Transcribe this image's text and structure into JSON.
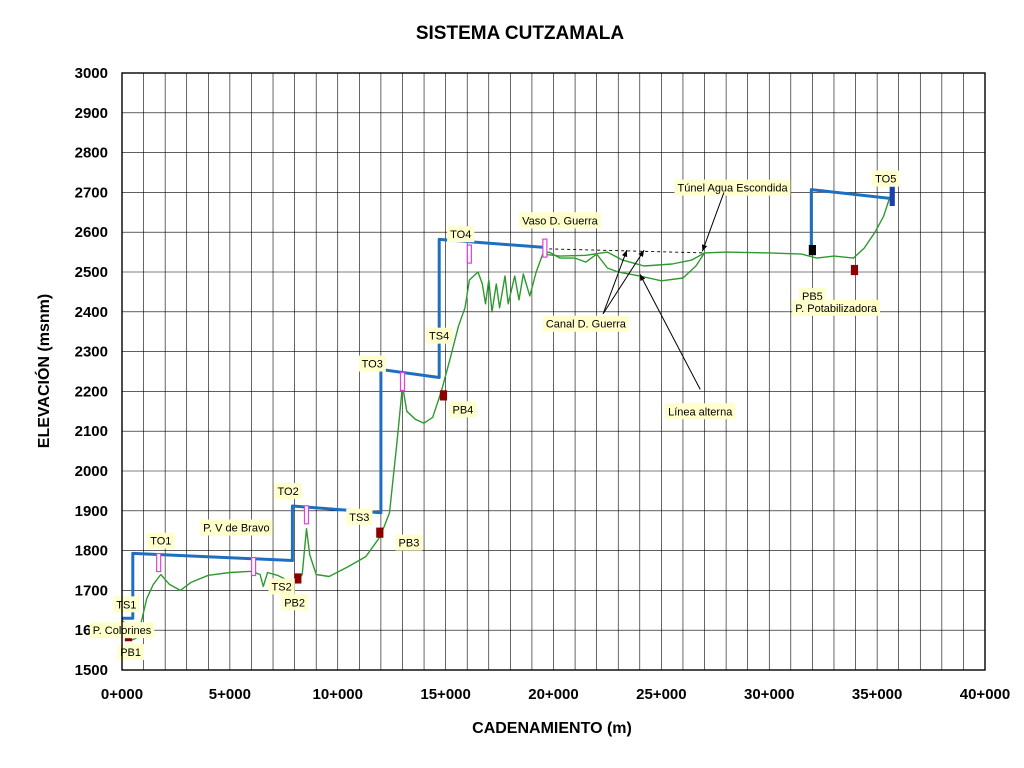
{
  "chart_data": {
    "type": "line",
    "title": "SISTEMA CUTZAMALA",
    "xlabel": "CADENAMIENTO (m)",
    "ylabel": "ELEVACIÓN (msnm)",
    "xlim": [
      0,
      40000
    ],
    "ylim": [
      1500,
      3000
    ],
    "grid": true,
    "x_ticks": [
      0,
      5000,
      10000,
      15000,
      20000,
      25000,
      30000,
      35000,
      40000
    ],
    "x_tick_labels": [
      "0+000",
      "5+000",
      "10+000",
      "15+000",
      "20+000",
      "25+000",
      "30+000",
      "35+000",
      "40+000"
    ],
    "y_ticks": [
      1500,
      1600,
      1700,
      1800,
      1900,
      2000,
      2100,
      2200,
      2300,
      2400,
      2500,
      2600,
      2700,
      2800,
      2900,
      3000
    ],
    "y_tick_labels": [
      "1500",
      "1600",
      "1700",
      "1800",
      "1900",
      "2000",
      "2100",
      "2200",
      "2300",
      "2400",
      "2500",
      "2600",
      "2700",
      "2800",
      "2900",
      "3000"
    ],
    "series": [
      {
        "color": "#1f6fc0",
        "points": [
          [
            0,
            1630
          ],
          [
            500,
            1630
          ],
          [
            500,
            1793
          ],
          [
            7900,
            1775
          ],
          [
            7900,
            1912
          ],
          [
            12000,
            1895
          ],
          [
            12000,
            2255
          ],
          [
            14700,
            2235
          ],
          [
            14700,
            2582
          ],
          [
            19500,
            2562
          ]
        ]
      },
      {
        "color": "#1f6fc0",
        "points": [
          [
            31950,
            2555
          ],
          [
            31950,
            2707
          ],
          [
            35600,
            2685
          ]
        ]
      },
      {
        "color": "#2e9a2e",
        "points": [
          [
            0,
            1625
          ],
          [
            250,
            1610
          ],
          [
            450,
            1575
          ],
          [
            650,
            1580
          ],
          [
            850,
            1610
          ],
          [
            1150,
            1680
          ],
          [
            1450,
            1715
          ],
          [
            1800,
            1740
          ],
          [
            2200,
            1715
          ],
          [
            2700,
            1700
          ],
          [
            3200,
            1720
          ],
          [
            4000,
            1738
          ],
          [
            5000,
            1745
          ],
          [
            6000,
            1748
          ],
          [
            6400,
            1740
          ],
          [
            6550,
            1710
          ],
          [
            6750,
            1745
          ],
          [
            7200,
            1738
          ],
          [
            7700,
            1725
          ],
          [
            8100,
            1720
          ],
          [
            8350,
            1740
          ],
          [
            8550,
            1855
          ],
          [
            8700,
            1790
          ],
          [
            9000,
            1740
          ],
          [
            9600,
            1735
          ],
          [
            10500,
            1760
          ],
          [
            11300,
            1785
          ],
          [
            11900,
            1830
          ],
          [
            12150,
            1860
          ],
          [
            12400,
            1895
          ],
          [
            12750,
            2075
          ],
          [
            13000,
            2215
          ],
          [
            13200,
            2150
          ],
          [
            13600,
            2130
          ],
          [
            14000,
            2120
          ],
          [
            14400,
            2135
          ],
          [
            14800,
            2200
          ],
          [
            15200,
            2280
          ],
          [
            15600,
            2365
          ],
          [
            15900,
            2410
          ],
          [
            16100,
            2480
          ],
          [
            16500,
            2500
          ],
          [
            16700,
            2470
          ],
          [
            16850,
            2420
          ],
          [
            17000,
            2480
          ],
          [
            17150,
            2400
          ],
          [
            17350,
            2470
          ],
          [
            17500,
            2410
          ],
          [
            17750,
            2490
          ],
          [
            17900,
            2420
          ],
          [
            18200,
            2490
          ],
          [
            18400,
            2430
          ],
          [
            18600,
            2495
          ],
          [
            18900,
            2440
          ],
          [
            19200,
            2500
          ],
          [
            19500,
            2545
          ],
          [
            19800,
            2550
          ],
          [
            20300,
            2535
          ],
          [
            21000,
            2535
          ],
          [
            21500,
            2525
          ],
          [
            22000,
            2545
          ],
          [
            22500,
            2510
          ],
          [
            23000,
            2500
          ],
          [
            24000,
            2490
          ],
          [
            25000,
            2478
          ],
          [
            26000,
            2485
          ],
          [
            26600,
            2515
          ],
          [
            27000,
            2548
          ],
          [
            28000,
            2550
          ],
          [
            30000,
            2548
          ],
          [
            31500,
            2545
          ],
          [
            32200,
            2535
          ],
          [
            33000,
            2540
          ],
          [
            33900,
            2535
          ],
          [
            34400,
            2560
          ],
          [
            34900,
            2600
          ],
          [
            35300,
            2640
          ],
          [
            35600,
            2690
          ]
        ]
      },
      {
        "color": "#2e9a2e",
        "points": [
          [
            19500,
            2545
          ],
          [
            20300,
            2540
          ],
          [
            21500,
            2542
          ],
          [
            22500,
            2550
          ],
          [
            23200,
            2530
          ],
          [
            24200,
            2515
          ],
          [
            25500,
            2520
          ],
          [
            26400,
            2530
          ],
          [
            27000,
            2548
          ]
        ]
      },
      {
        "color": "#000000",
        "dashed": true,
        "points": [
          [
            19800,
            2558
          ],
          [
            27000,
            2548
          ]
        ]
      }
    ],
    "annotations": [
      {
        "text": "P. Colorines",
        "x": 0,
        "y": 1600
      },
      {
        "text": "TS1",
        "x": 200,
        "y": 1665
      },
      {
        "text": "PB1",
        "x": 400,
        "y": 1545
      },
      {
        "text": "TO1",
        "x": 1800,
        "y": 1825
      },
      {
        "text": "P. V de Bravo",
        "x": 5300,
        "y": 1858
      },
      {
        "text": "TS2",
        "x": 7400,
        "y": 1710
      },
      {
        "text": "PB2",
        "x": 8000,
        "y": 1670
      },
      {
        "text": "TO2",
        "x": 7700,
        "y": 1950
      },
      {
        "text": "TS3",
        "x": 11000,
        "y": 1885
      },
      {
        "text": "PB3",
        "x": 13300,
        "y": 1820
      },
      {
        "text": "TO3",
        "x": 11600,
        "y": 2270
      },
      {
        "text": "TS4",
        "x": 14700,
        "y": 2340
      },
      {
        "text": "PB4",
        "x": 15800,
        "y": 2155
      },
      {
        "text": "TO4",
        "x": 15700,
        "y": 2595
      },
      {
        "text": "Vaso D. Guerra",
        "x": 20300,
        "y": 2630
      },
      {
        "text": "Túnel Agua Escondida",
        "x": 28300,
        "y": 2712
      },
      {
        "text": "Canal D. Guerra",
        "x": 21500,
        "y": 2370
      },
      {
        "text": "Línea alterna",
        "x": 26800,
        "y": 2150
      },
      {
        "text": "PB5",
        "x": 32000,
        "y": 2440
      },
      {
        "text": "P. Potabilizadora",
        "x": 33100,
        "y": 2410
      },
      {
        "text": "TO5",
        "x": 35400,
        "y": 2735
      }
    ],
    "markers": [
      {
        "x": 300,
        "y": 1585,
        "color": "#8b0000"
      },
      {
        "x": 1700,
        "y": 1770,
        "color": "#e040e0"
      },
      {
        "x": 6100,
        "y": 1760,
        "color": "#e040e0"
      },
      {
        "x": 8150,
        "y": 1730,
        "color": "#8b0000"
      },
      {
        "x": 8550,
        "y": 1890,
        "color": "#e040e0"
      },
      {
        "x": 11950,
        "y": 1845,
        "color": "#8b0000"
      },
      {
        "x": 13000,
        "y": 2225,
        "color": "#e040e0"
      },
      {
        "x": 14900,
        "y": 2190,
        "color": "#8b0000"
      },
      {
        "x": 16100,
        "y": 2545,
        "color": "#e040e0"
      },
      {
        "x": 19600,
        "y": 2560,
        "color": "#e040e0"
      },
      {
        "x": 32000,
        "y": 2555,
        "color": "#000000"
      },
      {
        "x": 33950,
        "y": 2505,
        "color": "#8b0000"
      },
      {
        "x": 35700,
        "y": 2690,
        "color": "#1a3fb0"
      }
    ]
  }
}
